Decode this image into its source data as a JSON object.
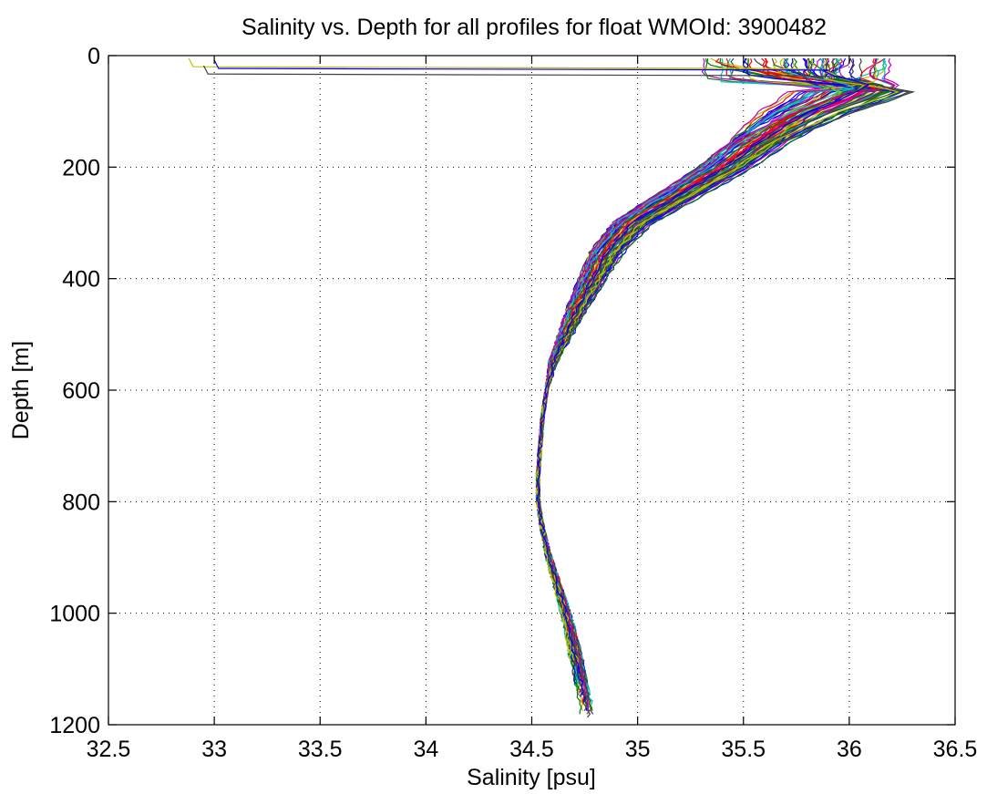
{
  "chart_data": {
    "type": "line",
    "title": "Salinity vs. Depth for all profiles for float WMOId: 3900482",
    "xlabel": "Salinity [psu]",
    "ylabel": "Depth [m]",
    "xlim": [
      32.5,
      36.5
    ],
    "ylim": [
      0,
      1200
    ],
    "y_reversed": true,
    "grid": true,
    "grid_style": "dotted",
    "x_ticks": [
      32.5,
      33,
      33.5,
      34,
      34.5,
      35,
      35.5,
      36,
      36.5
    ],
    "y_ticks": [
      0,
      200,
      400,
      600,
      800,
      1000,
      1200
    ],
    "x_tick_labels": [
      "32.5",
      "33",
      "33.5",
      "34",
      "34.5",
      "35",
      "35.5",
      "36",
      "36.5"
    ],
    "y_tick_labels": [
      "0",
      "200",
      "400",
      "600",
      "800",
      "1000",
      "1200"
    ],
    "series_colors": [
      "#0000ff",
      "#ff0000",
      "#008000",
      "#00bfbf",
      "#bf00bf",
      "#bfbf00",
      "#404040"
    ],
    "mean_profile": {
      "depth": [
        0,
        20,
        40,
        50,
        60,
        80,
        100,
        130,
        160,
        200,
        250,
        300,
        350,
        400,
        450,
        500,
        550,
        600,
        650,
        700,
        750,
        800,
        850,
        900,
        950,
        1000,
        1050,
        1100,
        1150,
        1200
      ],
      "salinity": [
        35.85,
        35.85,
        35.95,
        36.1,
        36.05,
        35.95,
        35.82,
        35.68,
        35.56,
        35.42,
        35.2,
        34.98,
        34.86,
        34.79,
        34.72,
        34.66,
        34.6,
        34.57,
        34.55,
        34.54,
        34.53,
        34.53,
        34.55,
        34.58,
        34.62,
        34.66,
        34.69,
        34.72,
        34.74,
        34.76
      ]
    },
    "profile_count": 70
  }
}
